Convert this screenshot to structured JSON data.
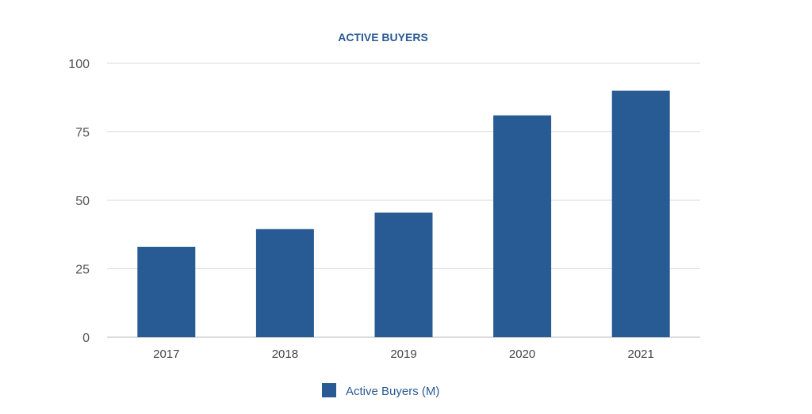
{
  "chart_data": {
    "type": "bar",
    "title": "ACTIVE BUYERS",
    "categories": [
      "2017",
      "2018",
      "2019",
      "2020",
      "2021"
    ],
    "series": [
      {
        "name": "Active Buyers (M)",
        "values": [
          33,
          39.5,
          45.5,
          81,
          90
        ]
      }
    ],
    "ylim": [
      0,
      100
    ],
    "yticks": [
      "0",
      "25",
      "50",
      "75",
      "100"
    ],
    "xlabel": "",
    "ylabel": "",
    "grid": true,
    "legend": "bottom",
    "colors": {
      "bar": "#285b94",
      "title": "#2a5a93"
    }
  }
}
